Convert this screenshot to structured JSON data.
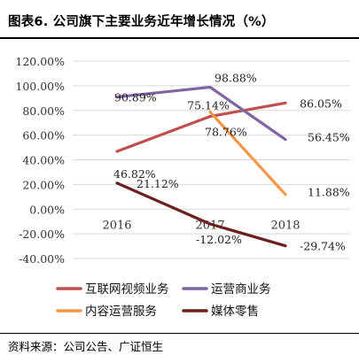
{
  "header": {
    "title": "图表6.   公司旗下主要业务近年增长情况（%）"
  },
  "source": "资料来源：公司公告、广证恒生",
  "chart_data": {
    "type": "line",
    "title": "",
    "xlabel": "",
    "ylabel": "",
    "categories": [
      "2016",
      "2017",
      "2018"
    ],
    "ylim": [
      -40,
      120
    ],
    "yticks": [
      120,
      100,
      80,
      60,
      40,
      20,
      0,
      -20,
      -40
    ],
    "ytick_labels": [
      "120.00%",
      "100.00%",
      "80.00%",
      "60.00%",
      "40.00%",
      "20.00%",
      "0.00%",
      "-20.00%",
      "-40.00%"
    ],
    "grid": true,
    "legend_position": "bottom",
    "series": [
      {
        "name": "互联网视频业务",
        "color": "#c0504d",
        "values": [
          46.82,
          75.14,
          86.05
        ],
        "labels": [
          "46.82%",
          "75.14%",
          "86.05%"
        ]
      },
      {
        "name": "运营商业务",
        "color": "#8064a2",
        "values": [
          90.89,
          98.88,
          56.45
        ],
        "labels": [
          "90.89%",
          "98.88%",
          "56.45%"
        ]
      },
      {
        "name": "内容运营服务",
        "color": "#f79646",
        "values": [
          null,
          78.76,
          11.88
        ],
        "labels": [
          "",
          "78.76%",
          "11.88%"
        ]
      },
      {
        "name": "媒体零售",
        "color": "#6b1f1f",
        "values": [
          21.12,
          -12.02,
          -29.74
        ],
        "labels": [
          "21.12%",
          "-12.02%",
          "-29.74%"
        ]
      }
    ]
  }
}
